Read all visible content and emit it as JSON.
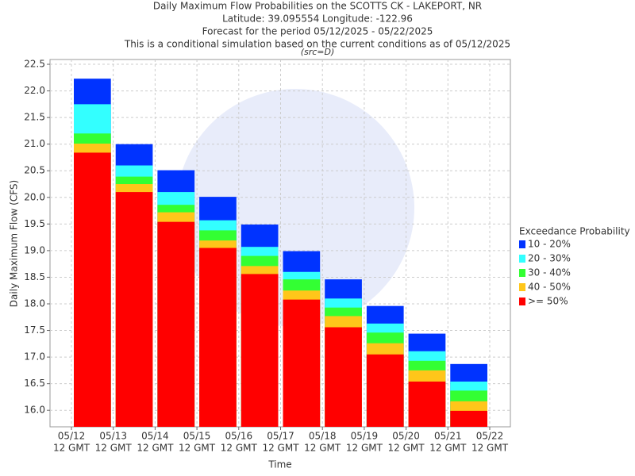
{
  "chart_data": {
    "type": "bar",
    "title": "Daily Maximum Flow Probabilities on the SCOTTS CK - LAKEPORT, NR",
    "subtitle": [
      "Latitude: 39.095554 Longitude: -122.96",
      "Forecast for the period 05/12/2025 - 05/22/2025",
      "This is a conditional simulation based on the current conditions as of 05/12/2025"
    ],
    "note": "(src=D)",
    "x_label": "Time",
    "y_label": "Daily Maximum Flow (CFS)",
    "x_tick_labels": [
      [
        "05/12",
        "12 GMT"
      ],
      [
        "05/13",
        "12 GMT"
      ],
      [
        "05/14",
        "12 GMT"
      ],
      [
        "05/15",
        "12 GMT"
      ],
      [
        "05/16",
        "12 GMT"
      ],
      [
        "05/17",
        "12 GMT"
      ],
      [
        "05/18",
        "12 GMT"
      ],
      [
        "05/19",
        "12 GMT"
      ],
      [
        "05/20",
        "12 GMT"
      ],
      [
        "05/21",
        "12 GMT"
      ],
      [
        "05/22",
        "12 GMT"
      ]
    ],
    "ylim": [
      15.69,
      22.59
    ],
    "yticks": [
      {
        "value": 16,
        "label": "16.0"
      },
      16.5,
      {
        "value": 17,
        "label": "17.0"
      },
      17.5,
      {
        "value": 18,
        "label": "18.0"
      },
      18.5,
      {
        "value": 19,
        "label": "19.0"
      },
      19.5,
      {
        "value": 20,
        "label": "20.0"
      },
      20.5,
      {
        "value": 21,
        "label": "21.0"
      },
      21.5,
      {
        "value": 22,
        "label": "22.0"
      },
      22.5
    ],
    "grid": true,
    "legend_title": "Exceedance Probability",
    "legend_position": "right",
    "series": [
      {
        "name": "10 - 20%",
        "color": "#0033ff",
        "values": [
          22.23,
          21.0,
          20.51,
          20.01,
          19.49,
          18.99,
          18.46,
          17.96,
          17.44,
          16.87
        ]
      },
      {
        "name": "20 - 30%",
        "color": "#33ffff",
        "values": [
          21.75,
          20.6,
          20.1,
          19.57,
          19.07,
          18.6,
          18.1,
          17.63,
          17.11,
          16.54
        ]
      },
      {
        "name": "30 - 40%",
        "color": "#33ff33",
        "values": [
          21.2,
          20.39,
          19.86,
          19.38,
          18.9,
          18.46,
          17.93,
          17.46,
          16.93,
          16.37
        ]
      },
      {
        "name": "40 - 50%",
        "color": "#ffc61a",
        "values": [
          21.01,
          20.25,
          19.72,
          19.19,
          18.71,
          18.25,
          17.77,
          17.26,
          16.75,
          16.17
        ]
      },
      {
        "name": ">= 50%",
        "color": "#ff0000",
        "values": [
          20.84,
          20.1,
          19.54,
          19.05,
          18.56,
          18.08,
          17.56,
          17.05,
          16.54,
          15.99
        ]
      }
    ]
  }
}
